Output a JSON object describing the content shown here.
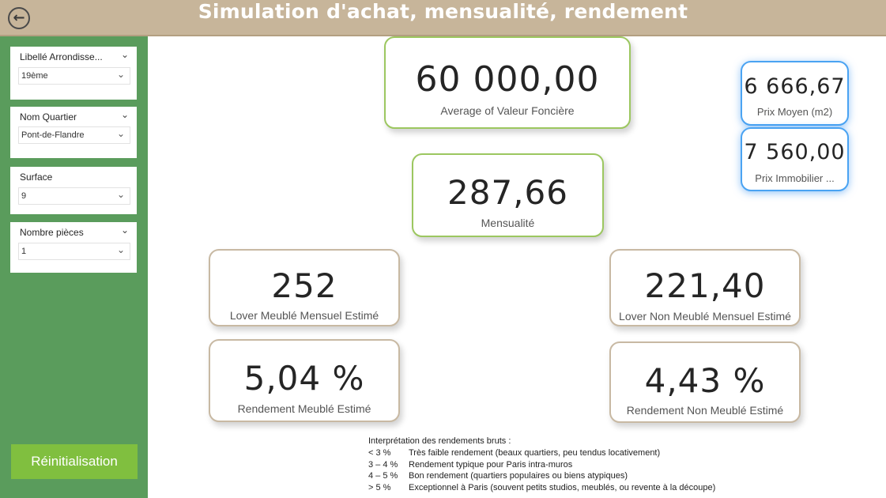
{
  "header": {
    "title": "Simulation d'achat, mensualité, rendement",
    "back_icon": "back-arrow-icon"
  },
  "colors": {
    "header_bg": "#c7b59a",
    "sidebar_bg": "#5a9c5c",
    "button_bg": "#80bf3f",
    "green_border": "#9cc760",
    "tan_border": "#c8b9a3",
    "blue_border": "#4aa3f2"
  },
  "slicers": [
    {
      "label": "Libellé Arrondisse...",
      "value": "19ème"
    },
    {
      "label": "Nom Quartier",
      "value": "Pont-de-Flandre"
    },
    {
      "label": "Surface",
      "value": "9"
    },
    {
      "label": "Nombre pièces",
      "value": "1"
    }
  ],
  "reset_button": {
    "label": "Réinitialisation"
  },
  "cards": {
    "valeur_fonciere": {
      "value": "60 000,00",
      "label": "Average of Valeur Foncière"
    },
    "mensualite": {
      "value": "287,66",
      "label": "Mensualité"
    },
    "prix_moyen": {
      "value": "6 666,67",
      "label": "Prix Moyen (m2)"
    },
    "prix_immobilier": {
      "value": "7 560,00",
      "label": "Prix Immobilier ..."
    },
    "loyer_meuble": {
      "value": "252",
      "label": "Lover Meublé Mensuel Estimé"
    },
    "loyer_non_meuble": {
      "value": "221,40",
      "label": "Lover Non Meublé Mensuel Estimé"
    },
    "rendement_meuble": {
      "value": "5,04 %",
      "label": "Rendement Meublé Estimé"
    },
    "rendement_non_meuble": {
      "value": "4,43 %",
      "label": "Rendement Non Meublé Estimé"
    }
  },
  "legend": {
    "title": "Interprétation des rendements bruts :",
    "rows": [
      {
        "key": "< 3 %",
        "text": "Très faible rendement (beaux quartiers, peu tendus locativement)"
      },
      {
        "key": "3 – 4 %",
        "text": "Rendement typique pour Paris intra-muros"
      },
      {
        "key": "4 – 5 %",
        "text": "Bon rendement (quartiers populaires ou biens atypiques)"
      },
      {
        "key": "> 5 %",
        "text": "Exceptionnel à Paris (souvent petits studios, meublés, ou revente à la découpe)"
      }
    ]
  }
}
